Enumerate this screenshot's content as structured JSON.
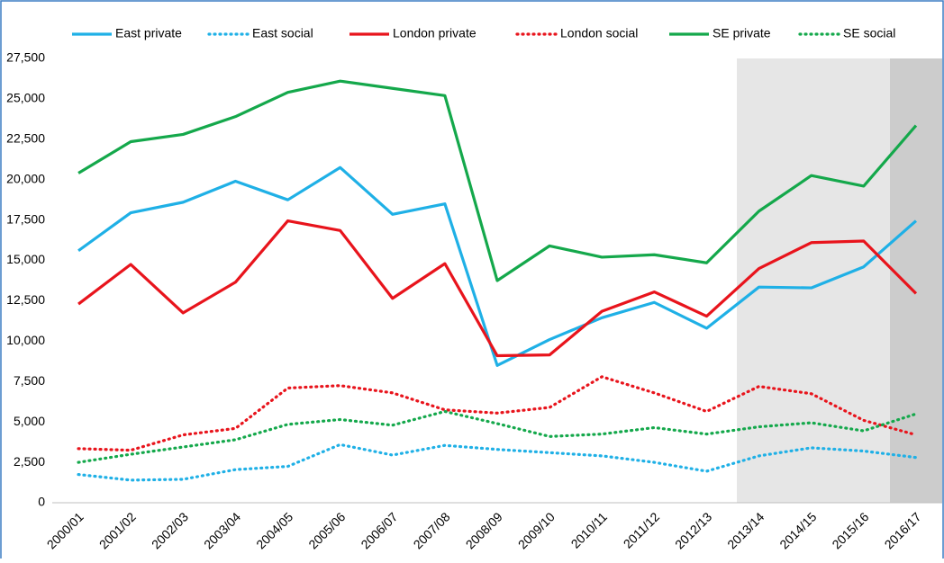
{
  "chart_data": {
    "type": "line",
    "categories": [
      "2000/01",
      "2001/02",
      "2002/03",
      "2003/04",
      "2004/05",
      "2005/06",
      "2006/07",
      "2007/08",
      "2008/09",
      "2009/10",
      "2010/11",
      "2011/12",
      "2012/13",
      "2013/14",
      "2014/15",
      "2015/16",
      "2016/17"
    ],
    "series": [
      {
        "name": "East private",
        "color": "#1fb0e6",
        "style": "solid",
        "values": [
          15600,
          17950,
          18600,
          19900,
          18750,
          20750,
          17850,
          18500,
          8500,
          10100,
          11450,
          12400,
          10800,
          13350,
          13300,
          14600,
          17450
        ]
      },
      {
        "name": "East social",
        "color": "#1fb0e6",
        "style": "dotted",
        "values": [
          1750,
          1400,
          1450,
          2050,
          2250,
          3600,
          2950,
          3550,
          3300,
          3100,
          2900,
          2500,
          1950,
          2900,
          3400,
          3200,
          2800
        ]
      },
      {
        "name": "London private",
        "color": "#e8141c",
        "style": "solid",
        "values": [
          12300,
          14750,
          11750,
          13650,
          17450,
          16850,
          12650,
          14800,
          9100,
          9150,
          11850,
          13050,
          11550,
          14500,
          16100,
          16200,
          12950
        ]
      },
      {
        "name": "London social",
        "color": "#e8141c",
        "style": "dotted",
        "values": [
          3350,
          3250,
          4200,
          4600,
          7100,
          7250,
          6800,
          5750,
          5550,
          5900,
          7800,
          6800,
          5650,
          7200,
          6750,
          5100,
          4200
        ]
      },
      {
        "name": "SE private",
        "color": "#14a84b",
        "style": "solid",
        "values": [
          20400,
          22350,
          22800,
          23900,
          25400,
          26100,
          25650,
          25200,
          13750,
          15900,
          15200,
          15350,
          14850,
          18050,
          20250,
          19600,
          23350
        ]
      },
      {
        "name": "SE social",
        "color": "#14a84b",
        "style": "dotted",
        "values": [
          2500,
          3000,
          3450,
          3900,
          4850,
          5150,
          4800,
          5650,
          4900,
          4100,
          4250,
          4650,
          4250,
          4700,
          4950,
          4450,
          5500
        ]
      }
    ],
    "ylim": [
      0,
      27500
    ],
    "yticks": [
      0,
      {
        "value": 2500,
        "label": "2,500"
      },
      {
        "value": 5000,
        "label": "5,000"
      },
      {
        "value": 7500,
        "label": "7,500"
      },
      {
        "value": 10000,
        "label": "10,000"
      },
      {
        "value": 12500,
        "label": "12,500"
      },
      {
        "value": 15000,
        "label": "15,000"
      },
      {
        "value": 17500,
        "label": "17,500"
      },
      {
        "value": 20000,
        "label": "20,000"
      },
      {
        "value": 22500,
        "label": "22,500"
      },
      {
        "value": 25000,
        "label": "25,000"
      },
      {
        "value": 27500,
        "label": "27,500"
      }
    ],
    "grid": false,
    "legend": "top"
  }
}
